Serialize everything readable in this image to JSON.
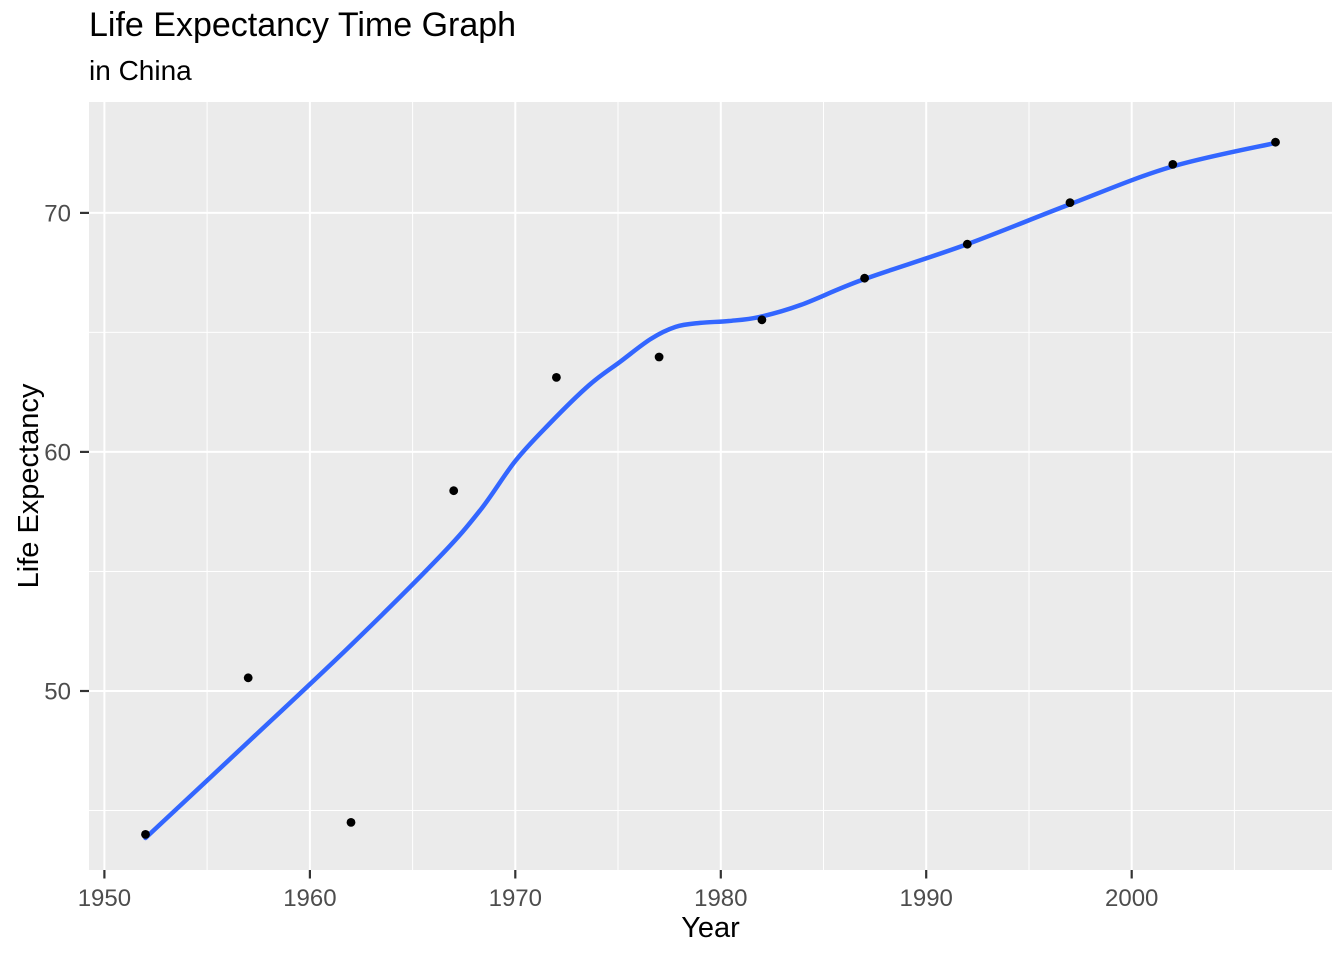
{
  "chart_data": {
    "type": "scatter",
    "title": "Life Expectancy Time Graph",
    "subtitle": "in China",
    "xlabel": "Year",
    "ylabel": "Life Expectancy",
    "xlim": [
      1949.25,
      2009.75
    ],
    "ylim": [
      42.51,
      74.64
    ],
    "x_major_ticks": [
      1950,
      1960,
      1970,
      1980,
      1990,
      2000
    ],
    "x_minor_ticks": [
      1955,
      1965,
      1975,
      1985,
      1995,
      2005
    ],
    "y_major_ticks": [
      50,
      60,
      70
    ],
    "y_minor_ticks": [
      45,
      55,
      65
    ],
    "grid": true,
    "legend": "none",
    "series": [
      {
        "name": "life-expectancy-points",
        "type": "scatter",
        "color": "#000000",
        "x": [
          1952,
          1957,
          1962,
          1967,
          1972,
          1977,
          1982,
          1987,
          1992,
          1997,
          2002,
          2007
        ],
        "y": [
          44.0,
          50.55,
          44.5,
          58.38,
          63.12,
          63.97,
          65.53,
          67.27,
          68.69,
          70.43,
          72.03,
          72.96
        ]
      },
      {
        "name": "loess-smooth-line",
        "type": "line",
        "color": "#3366FF",
        "x": [
          1952,
          1957.1,
          1962,
          1966.3,
          1968.3,
          1970,
          1971.7,
          1973.6,
          1975.1,
          1976.6,
          1977.8,
          1979,
          1980.4,
          1981.9,
          1983.9,
          1986.9,
          1991.9,
          1996.9,
          2001.9,
          2007
        ],
        "y": [
          43.85,
          47.95,
          51.92,
          55.6,
          57.57,
          59.62,
          61.21,
          62.8,
          63.77,
          64.73,
          65.23,
          65.4,
          65.48,
          65.65,
          66.15,
          67.2,
          68.66,
          70.33,
          71.92,
          72.93
        ]
      }
    ],
    "colors": {
      "panel_background": "#EBEBEB",
      "grid": "#FFFFFF",
      "tick_text": "#4D4D4D",
      "tick_mark": "#333333",
      "axis_text": "#000000",
      "smooth_line": "#3366FF",
      "point": "#000000"
    }
  }
}
